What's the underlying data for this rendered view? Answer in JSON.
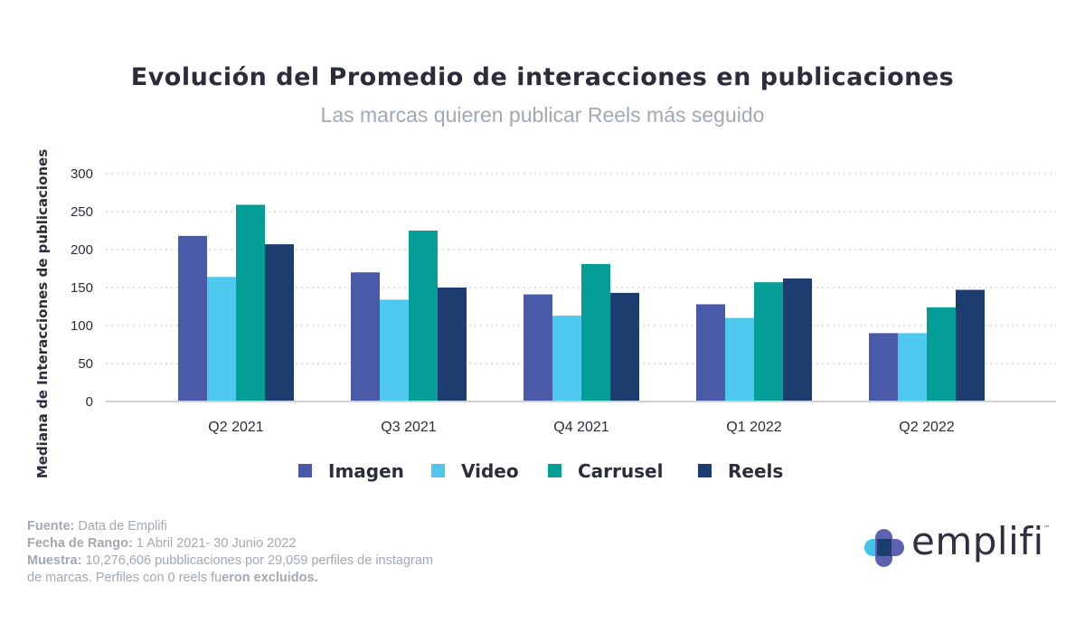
{
  "chart_data": {
    "type": "bar",
    "title": "Evolución del Promedio de interacciones en publicaciones",
    "subtitle": "Las marcas quieren publicar Reels más seguido",
    "ylabel": "Mediana de Interacciones de publicaciones",
    "xlabel": "",
    "ylim": [
      0,
      300
    ],
    "yticks": [
      0,
      50,
      100,
      150,
      200,
      250,
      300
    ],
    "grid": true,
    "legend_position": "bottom",
    "categories": [
      "Q2 2021",
      "Q3 2021",
      "Q4 2021",
      "Q1 2022",
      "Q2 2022"
    ],
    "series": [
      {
        "name": "Imagen",
        "color": "#4a5aa8",
        "values": [
          218,
          170,
          141,
          128,
          90
        ]
      },
      {
        "name": "Video",
        "color": "#4ec8ec",
        "values": [
          164,
          134,
          113,
          110,
          90
        ]
      },
      {
        "name": "Carrusel",
        "color": "#049e96",
        "values": [
          259,
          225,
          181,
          157,
          124
        ]
      },
      {
        "name": "Reels",
        "color": "#1d3d70",
        "values": [
          207,
          150,
          143,
          162,
          147
        ]
      }
    ]
  },
  "footer": {
    "source_label": "Fuente:",
    "source_value": " Data de Emplifi",
    "range_label": "Fecha de Rango:",
    "range_value": " 1 Abril 2021- 30 Junio 2022",
    "sample_label": "Muestra:",
    "sample_value": " 10,276,606 pubblicaciones por 29,059 perfiles de instagram de marcas. Perfiles con 0 reels fu",
    "sample_bold_tail": "eron excluidos."
  },
  "logo": {
    "text": "emplifi",
    "tm": "™",
    "colors": {
      "cyan": "#3ec6ea",
      "purple": "#5c62b0",
      "navy": "#1d3d70"
    }
  }
}
